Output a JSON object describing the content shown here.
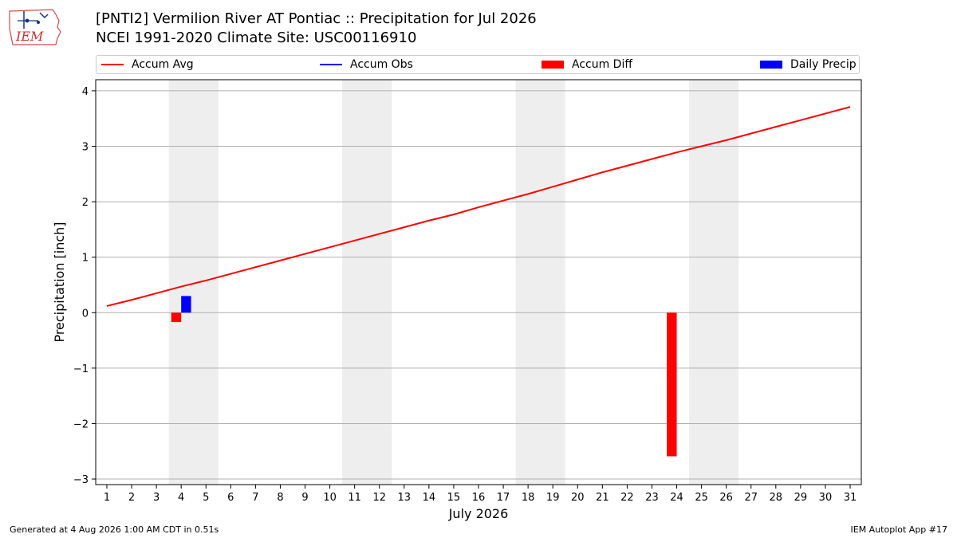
{
  "header": {
    "logo_text": "IEM",
    "title_line1": "[PNTI2] Vermilion River  AT Pontiac :: Precipitation for Jul 2026",
    "title_line2": "NCEI 1991-2020 Climate Site: USC00116910"
  },
  "footer": {
    "left": "Generated at 4 Aug 2026 1:00 AM CDT in 0.51s",
    "right": "IEM Autoplot App #17"
  },
  "colors": {
    "avg": "#ff0000",
    "obs": "#0000ff",
    "diff": "#ff0000",
    "daily": "#0000ff",
    "weekend_band": "#eeeeee",
    "grid": "#b0b0b0"
  },
  "chart_data": {
    "type": "bar",
    "xlabel": "July 2026",
    "ylabel": "Precipitation [inch]",
    "xlim": [
      0.55,
      31.45
    ],
    "ylim": [
      -3.1,
      4.2
    ],
    "x_ticks": [
      1,
      2,
      3,
      4,
      5,
      6,
      7,
      8,
      9,
      10,
      11,
      12,
      13,
      14,
      15,
      16,
      17,
      18,
      19,
      20,
      21,
      22,
      23,
      24,
      25,
      26,
      27,
      28,
      29,
      30,
      31
    ],
    "y_ticks": [
      4,
      3,
      2,
      1,
      0,
      -1,
      -2,
      -3
    ],
    "y_tick_labels": [
      "4",
      "3",
      "2",
      "1",
      "0",
      "−1",
      "−2",
      "−3"
    ],
    "grid": "horizontal",
    "legend_position": "top",
    "shaded_days": [
      [
        4,
        5
      ],
      [
        11,
        12
      ],
      [
        18,
        19
      ],
      [
        25,
        26
      ]
    ],
    "series": [
      {
        "name": "Accum Avg",
        "type": "line",
        "x": [
          1,
          2,
          3,
          4,
          5,
          6,
          7,
          8,
          9,
          10,
          11,
          12,
          13,
          14,
          15,
          16,
          17,
          18,
          19,
          20,
          21,
          22,
          23,
          24,
          25,
          26,
          27,
          28,
          29,
          30,
          31
        ],
        "values": [
          0.12,
          0.23,
          0.35,
          0.47,
          0.58,
          0.7,
          0.82,
          0.94,
          1.06,
          1.18,
          1.3,
          1.42,
          1.54,
          1.66,
          1.77,
          1.9,
          2.02,
          2.14,
          2.27,
          2.4,
          2.53,
          2.65,
          2.77,
          2.89,
          3.0,
          3.11,
          3.23,
          3.35,
          3.47,
          3.59,
          3.71
        ]
      },
      {
        "name": "Accum Obs",
        "type": "line",
        "x": [],
        "values": []
      },
      {
        "name": "Accum Diff",
        "type": "bar",
        "x": [
          4,
          24
        ],
        "values": [
          -0.17,
          -2.59
        ]
      },
      {
        "name": "Daily Precip",
        "type": "bar",
        "x": [
          4
        ],
        "values": [
          0.3
        ]
      }
    ]
  }
}
